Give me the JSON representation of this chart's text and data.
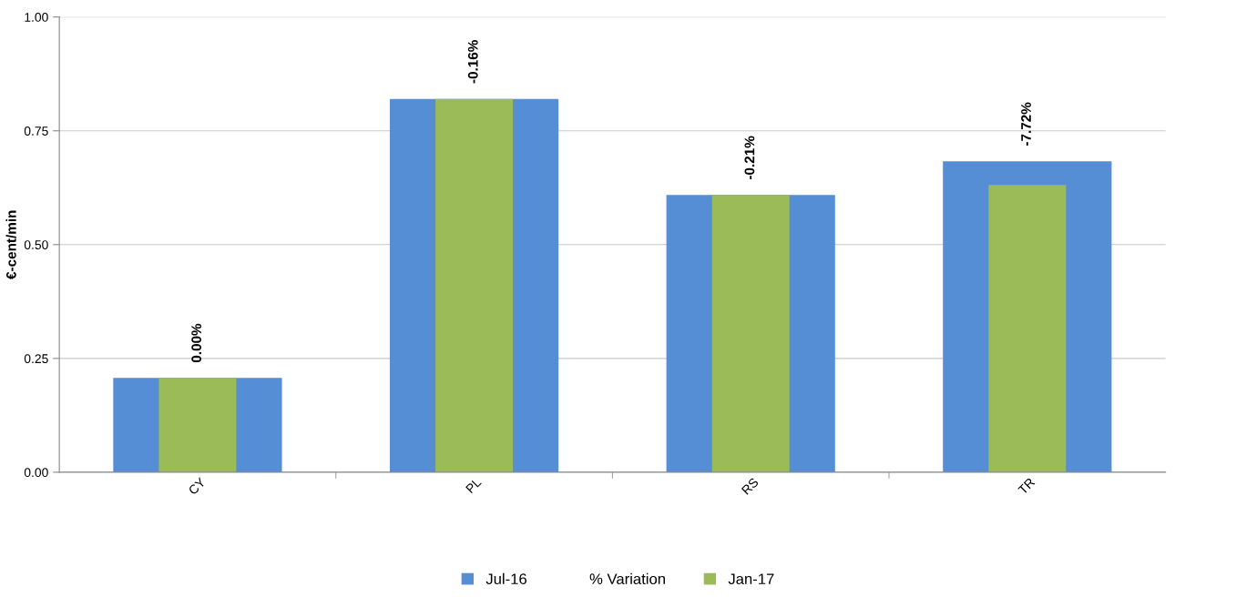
{
  "chart_data": {
    "type": "bar",
    "ylabel": "€-cent/min",
    "categories": [
      "CY",
      "PL",
      "RS",
      "TR"
    ],
    "series": [
      {
        "name": "Jul-16",
        "color": "#558ed5",
        "values": [
          0.207,
          0.82,
          0.609,
          0.683
        ]
      },
      {
        "name": "% Variation",
        "values": [
          null,
          null,
          null,
          null
        ]
      },
      {
        "name": "Jan-17",
        "color": "#9bbb59",
        "values": [
          0.207,
          0.82,
          0.609,
          0.631
        ]
      }
    ],
    "annotations": [
      {
        "text": "0.00%",
        "x": "CY",
        "y": 0.207
      },
      {
        "text": "-0.16%",
        "x": "PL",
        "y": 0.82
      },
      {
        "text": "-0.21%",
        "x": "RS",
        "y": 0.609
      },
      {
        "text": "-7.72%",
        "x": "TR",
        "y": 0.683
      }
    ],
    "ylim": [
      0,
      1
    ],
    "yticks": [
      {
        "value": 0,
        "label": "0.00"
      },
      {
        "value": 0.25,
        "label": "0.25"
      },
      {
        "value": 0.5,
        "label": "0.50"
      },
      {
        "value": 0.75,
        "label": "0.75"
      },
      {
        "value": 1,
        "label": "1.00"
      }
    ],
    "grid": "y",
    "legend": "bottom"
  }
}
